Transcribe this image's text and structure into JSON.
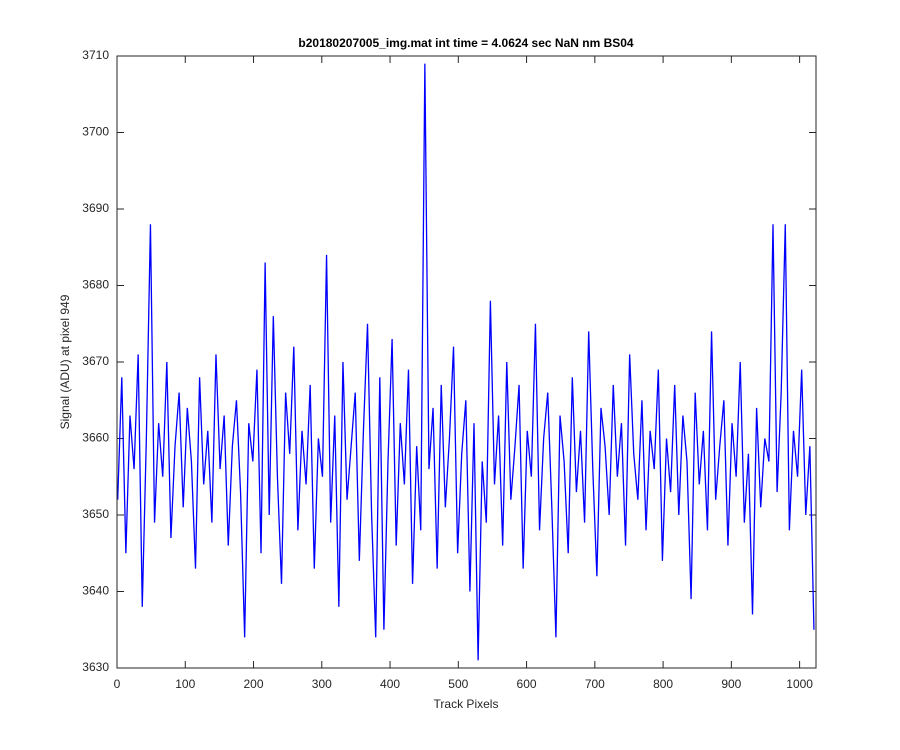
{
  "chart_data": {
    "type": "line",
    "title": "b20180207005_img.mat int time = 4.0624 sec  NaN nm BS04",
    "x_label": "Track Pixels",
    "y_label": "Signal (ADU) at pixel 949",
    "xlim": [
      0,
      1024
    ],
    "ylim": [
      3630,
      3710
    ],
    "xticks": [
      0,
      100,
      200,
      300,
      400,
      500,
      600,
      700,
      800,
      900,
      1000
    ],
    "yticks": [
      3630,
      3640,
      3650,
      3660,
      3670,
      3680,
      3690,
      3700,
      3710
    ],
    "grid": false,
    "x": [
      1,
      7,
      13,
      19,
      25,
      31,
      37,
      43,
      49,
      55,
      61,
      67,
      73,
      79,
      85,
      91,
      97,
      103,
      109,
      115,
      121,
      127,
      133,
      139,
      145,
      151,
      157,
      163,
      169,
      175,
      181,
      187,
      193,
      199,
      205,
      211,
      217,
      223,
      229,
      235,
      241,
      247,
      253,
      259,
      265,
      271,
      277,
      283,
      289,
      295,
      301,
      307,
      313,
      319,
      325,
      331,
      337,
      343,
      349,
      355,
      361,
      367,
      373,
      379,
      385,
      391,
      397,
      403,
      409,
      415,
      421,
      427,
      433,
      439,
      445,
      451,
      457,
      463,
      469,
      475,
      481,
      487,
      493,
      499,
      505,
      511,
      517,
      523,
      529,
      535,
      541,
      547,
      553,
      559,
      565,
      571,
      577,
      583,
      589,
      595,
      601,
      607,
      613,
      619,
      625,
      631,
      637,
      643,
      649,
      655,
      661,
      667,
      673,
      679,
      685,
      691,
      697,
      703,
      709,
      715,
      721,
      727,
      733,
      739,
      745,
      751,
      757,
      763,
      769,
      775,
      781,
      787,
      793,
      799,
      805,
      811,
      817,
      823,
      829,
      835,
      841,
      847,
      853,
      859,
      865,
      871,
      877,
      883,
      889,
      895,
      901,
      907,
      913,
      919,
      925,
      931,
      937,
      943,
      949,
      955,
      961,
      967,
      973,
      979,
      985,
      991,
      997,
      1003,
      1009,
      1015,
      1021
    ],
    "series": [
      {
        "color": "#0000ff",
        "values": [
          3652,
          3668,
          3645,
          3663,
          3656,
          3671,
          3638,
          3660,
          3688,
          3649,
          3662,
          3655,
          3670,
          3647,
          3659,
          3666,
          3651,
          3664,
          3657,
          3643,
          3668,
          3654,
          3661,
          3649,
          3671,
          3656,
          3663,
          3646,
          3659,
          3665,
          3653,
          3634,
          3662,
          3657,
          3669,
          3645,
          3683,
          3650,
          3676,
          3655,
          3641,
          3666,
          3658,
          3672,
          3648,
          3661,
          3654,
          3667,
          3643,
          3660,
          3655,
          3684,
          3649,
          3663,
          3638,
          3670,
          3652,
          3659,
          3666,
          3644,
          3661,
          3675,
          3650,
          3634,
          3668,
          3635,
          3657,
          3673,
          3646,
          3662,
          3654,
          3669,
          3641,
          3659,
          3648,
          3709,
          3656,
          3664,
          3643,
          3667,
          3651,
          3660,
          3672,
          3645,
          3658,
          3665,
          3640,
          3662,
          3631,
          3657,
          3649,
          3678,
          3654,
          3663,
          3646,
          3670,
          3652,
          3659,
          3667,
          3643,
          3661,
          3655,
          3675,
          3648,
          3660,
          3666,
          3651,
          3634,
          3663,
          3657,
          3645,
          3668,
          3653,
          3661,
          3649,
          3674,
          3656,
          3642,
          3664,
          3659,
          3650,
          3667,
          3655,
          3662,
          3646,
          3671,
          3658,
          3652,
          3665,
          3648,
          3661,
          3656,
          3669,
          3644,
          3660,
          3653,
          3667,
          3650,
          3663,
          3657,
          3639,
          3666,
          3654,
          3661,
          3648,
          3674,
          3652,
          3659,
          3665,
          3646,
          3662,
          3655,
          3670,
          3649,
          3658,
          3637,
          3664,
          3651,
          3660,
          3657,
          3688,
          3653,
          3666,
          3688,
          3648,
          3661,
          3655,
          3669,
          3650,
          3659,
          3635
        ]
      }
    ]
  }
}
